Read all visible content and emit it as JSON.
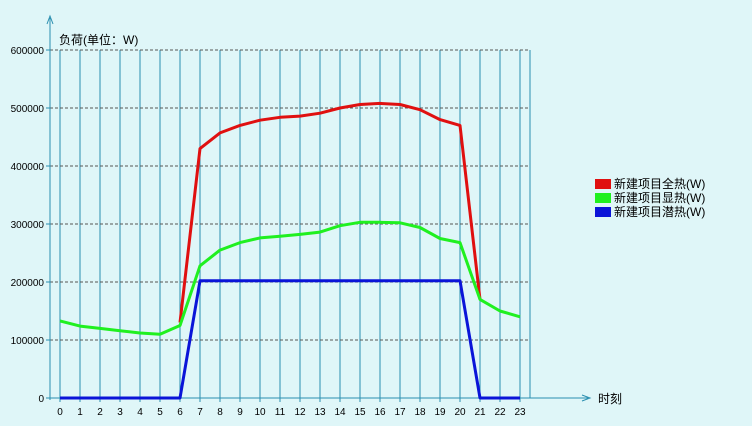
{
  "chart_data": {
    "type": "line",
    "title": "",
    "ylabel": "负荷(单位：W)",
    "xlabel": "时刻",
    "x": [
      0,
      1,
      2,
      3,
      4,
      5,
      6,
      7,
      8,
      9,
      10,
      11,
      12,
      13,
      14,
      15,
      16,
      17,
      18,
      19,
      20,
      21,
      22,
      23
    ],
    "xlim": [
      0,
      23
    ],
    "ylim": [
      0,
      600000
    ],
    "yticks": [
      0,
      100000,
      200000,
      300000,
      400000,
      500000,
      600000
    ],
    "grid": true,
    "legend_position": "right",
    "series": [
      {
        "name": "新建项目全热(W)",
        "color": "#e01010",
        "values": [
          null,
          null,
          null,
          null,
          null,
          null,
          130000,
          430000,
          457000,
          470000,
          479000,
          484000,
          486000,
          491000,
          500000,
          506000,
          508000,
          506000,
          497000,
          480000,
          470000,
          170000,
          null,
          null
        ]
      },
      {
        "name": "新建项目显热(W)",
        "color": "#20f020",
        "values": [
          133000,
          124000,
          120000,
          116000,
          112000,
          110000,
          125000,
          228000,
          255000,
          268000,
          276000,
          279000,
          282000,
          286000,
          297000,
          303000,
          303000,
          302000,
          294000,
          275000,
          268000,
          170000,
          150000,
          140000
        ]
      },
      {
        "name": "新建项目潜热(W)",
        "color": "#0a14d8",
        "values": [
          0,
          0,
          0,
          0,
          0,
          0,
          0,
          202000,
          202000,
          202000,
          202000,
          202000,
          202000,
          202000,
          202000,
          202000,
          202000,
          202000,
          202000,
          202000,
          202000,
          0,
          0,
          0
        ]
      }
    ]
  }
}
